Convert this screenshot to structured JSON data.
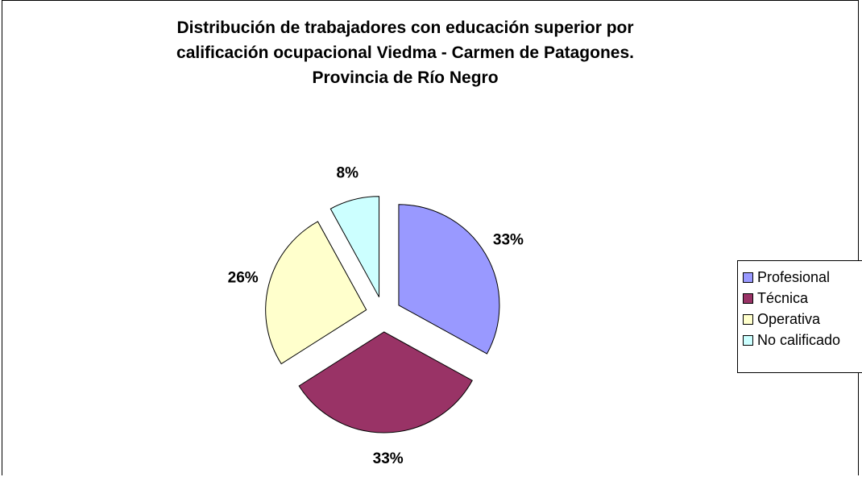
{
  "chart_data": {
    "type": "pie",
    "title": [
      "Distribución de trabajadores con educación superior por",
      "calificación  ocupacional  Viedma - Carmen de Patagones.",
      "Provincia de Río Negro"
    ],
    "categories": [
      "Profesional",
      "Técnica",
      "Operativa",
      "No calificado"
    ],
    "values": [
      33,
      33,
      26,
      8
    ],
    "data_labels": [
      "33%",
      "33%",
      "26%",
      "8%"
    ],
    "colors": [
      "#9999ff",
      "#993366",
      "#ffffcc",
      "#ccffff"
    ],
    "exploded": true,
    "legend_position": "right"
  }
}
